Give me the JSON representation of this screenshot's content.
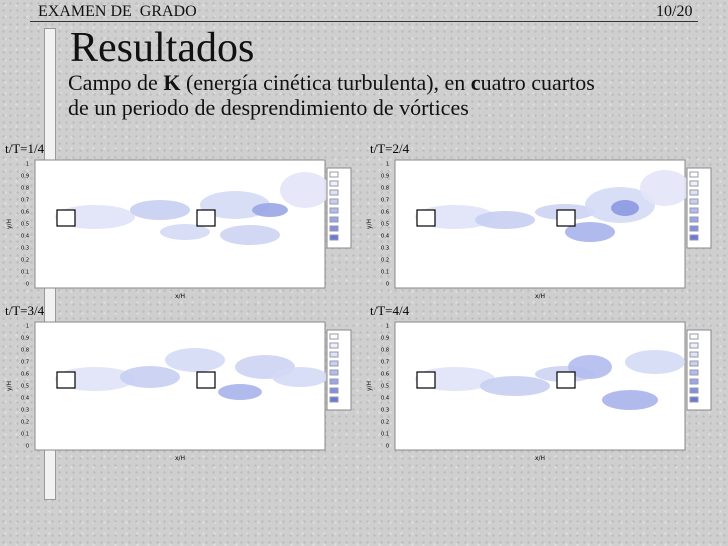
{
  "header": {
    "left": "EXAMEN DE  GRADO",
    "right": "10/20"
  },
  "title": "Resultados",
  "subtitle": {
    "a": "Campo de ",
    "b": "K",
    "c": " (energía cinética turbulenta), en ",
    "d": "c",
    "e": "uatro cuartos",
    "line2": "de un periodo de desprendimiento de vórtices"
  },
  "panels": [
    {
      "label": "t/T=1/4"
    },
    {
      "label": "t/T=2/4"
    },
    {
      "label": "t/T=3/4"
    },
    {
      "label": "t/T=4/4"
    }
  ],
  "axis": {
    "x_label": "x/H",
    "y_label": "y/H",
    "y_ticks": [
      "0",
      "0.1",
      "0.2",
      "0.3",
      "0.4",
      "0.5",
      "0.6",
      "0.7",
      "0.8",
      "0.9",
      "1"
    ]
  }
}
